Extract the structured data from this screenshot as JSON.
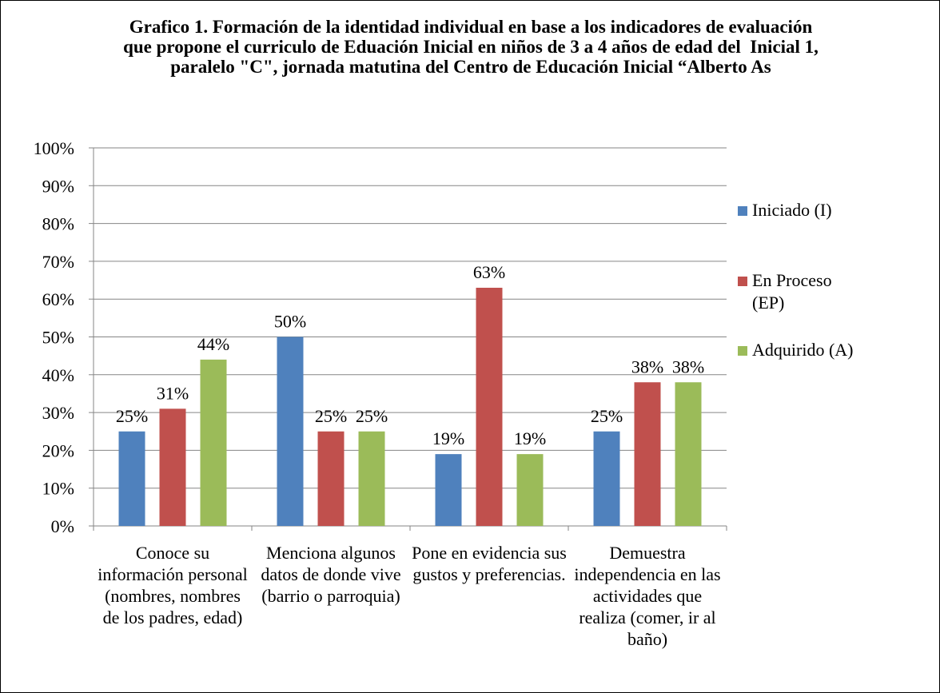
{
  "chart_data": {
    "type": "bar",
    "title": "Grafico 1. Formación de la identidad individual en base a los indicadores de evaluación que propone el curriculo de Eduación Inicial en niños de 3 a 4 años de edad del  Inicial 1, paralelo \"C\", jornada matutina del Centro de Educación Inicial “Alberto As",
    "categories": [
      "Conoce su información personal (nombres, nombres de los padres, edad)",
      "Menciona algunos datos de donde vive (barrio o parroquia)",
      "Pone en evidencia sus gustos y preferencias.",
      "Demuestra independencia en las actividades que realiza (comer, ir al baño)"
    ],
    "series": [
      {
        "name": "Iniciado (I)",
        "color": "#4f81bd",
        "values": [
          25,
          50,
          19,
          25
        ],
        "value_labels": [
          "25%",
          "50%",
          "19%",
          "25%"
        ]
      },
      {
        "name": "En Proceso (EP)",
        "color": "#c0504d",
        "values": [
          31,
          25,
          63,
          38
        ],
        "value_labels": [
          "31%",
          "25%",
          "63%",
          "38%"
        ]
      },
      {
        "name": "Adquirido (A)",
        "color": "#9bbb59",
        "values": [
          44,
          25,
          19,
          38
        ],
        "value_labels": [
          "44%",
          "25%",
          "19%",
          "38%"
        ]
      }
    ],
    "ylim": [
      0,
      100
    ],
    "yticks": [
      {
        "value": 0,
        "label": "0%"
      },
      {
        "value": 10,
        "label": "10%"
      },
      {
        "value": 20,
        "label": "20%"
      },
      {
        "value": 30,
        "label": "30%"
      },
      {
        "value": 40,
        "label": "40%"
      },
      {
        "value": 50,
        "label": "50%"
      },
      {
        "value": 60,
        "label": "60%"
      },
      {
        "value": 70,
        "label": "70%"
      },
      {
        "value": 80,
        "label": "80%"
      },
      {
        "value": 90,
        "label": "90%"
      },
      {
        "value": 100,
        "label": "100%"
      }
    ],
    "grid": true,
    "legend": "right"
  }
}
